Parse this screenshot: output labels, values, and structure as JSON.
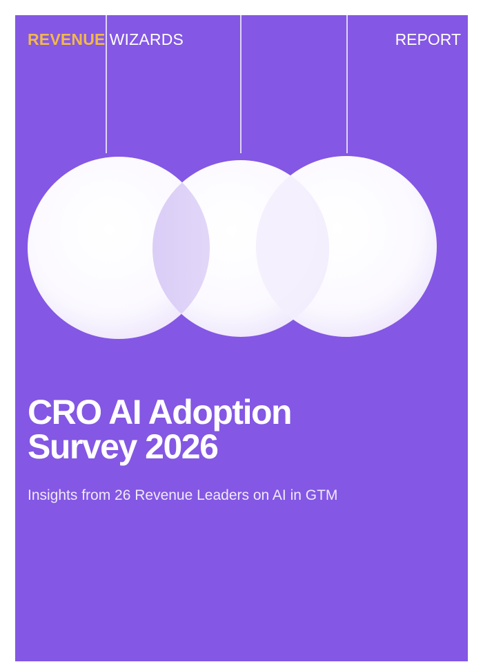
{
  "header": {
    "brand_accent": "REVENUE",
    "brand_rest": "WIZARDS",
    "label": "REPORT"
  },
  "cover": {
    "title_line1": "CRO AI Adoption",
    "title_line2": "Survey 2026",
    "subtitle": "Insights from 26 Revenue Leaders on AI in GTM"
  },
  "colors": {
    "background": "#8457e4",
    "accent": "#f2b84b",
    "sphere": "#ffffff"
  }
}
